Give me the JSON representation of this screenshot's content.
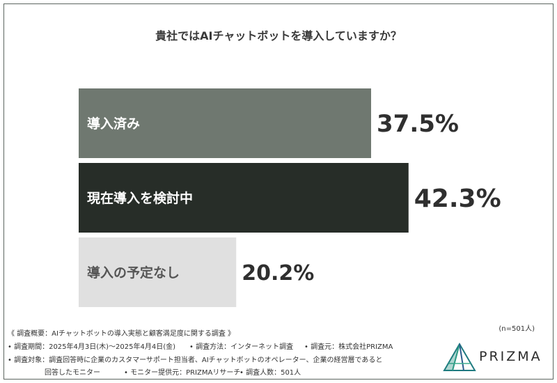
{
  "question": "貴社ではAIチャットボットを導入していますか？",
  "chart_data": {
    "type": "bar",
    "orientation": "horizontal",
    "categories": [
      "導入済み",
      "現在導入を検討中",
      "導入の予定なし"
    ],
    "values": [
      37.5,
      42.3,
      20.2
    ],
    "value_labels": [
      "37.5%",
      "42.3%",
      "20.2%"
    ],
    "title": "貴社ではAIチャットボットを導入していますか？",
    "xlabel": "",
    "ylabel": "",
    "xlim": [
      0,
      100
    ],
    "colors": [
      "#6f7870",
      "#272d28",
      "#e0e0e0"
    ],
    "label_colors": [
      "#ffffff",
      "#ffffff",
      "#555555"
    ]
  },
  "sample_note": "(n=501人)",
  "footnotes": {
    "heading": "《 調査概要：AIチャットボットの導入実態と顧客満足度に関する調査 》",
    "period": "• 調査期間：2025年4月3日(木)〜2025年4月4日(金)",
    "method": "• 調査方法：インターネット調査",
    "organizer": "• 調査元：株式会社PRIZMA",
    "target_line1": "• 調査対象：調査回答時に企業のカスタマーサポート担当者、AIチャットボットのオペレーター、企業の経営層であると",
    "target_line2": "回答したモニター",
    "provider": "• モニター提供元：PRIZMAリサーチ",
    "count": "• 調査人数：501人"
  },
  "logo": {
    "text": "PRIZMA",
    "colors": [
      "#1a8a7a",
      "#2a5c8c",
      "#3fae8f"
    ]
  }
}
